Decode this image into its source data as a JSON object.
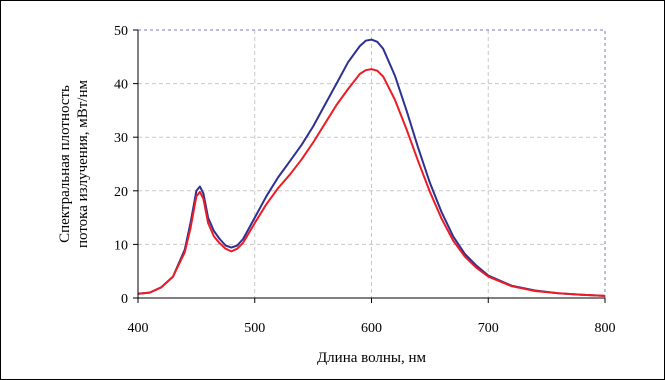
{
  "chart_data": {
    "type": "line",
    "title": "",
    "xlabel": "Длина волны, нм",
    "ylabel_lines": [
      "Спектральная плотность",
      "потока излучения, мВт/нм"
    ],
    "xlim": [
      400,
      800
    ],
    "ylim": [
      0,
      50
    ],
    "xticks": [
      "400",
      "500",
      "600",
      "700",
      "800"
    ],
    "yticks": [
      "0",
      "10",
      "20",
      "30",
      "40",
      "50"
    ],
    "grid": true,
    "colors": {
      "frame": "#7b7bc8",
      "grid": "#c8c8c8"
    },
    "series": [
      {
        "color": "#2e3192",
        "x": [
          400,
          410,
          420,
          430,
          440,
          445,
          450,
          453,
          456,
          460,
          465,
          470,
          475,
          480,
          485,
          490,
          500,
          510,
          520,
          530,
          540,
          550,
          560,
          570,
          580,
          590,
          595,
          600,
          605,
          610,
          620,
          630,
          640,
          650,
          660,
          670,
          680,
          690,
          700,
          720,
          740,
          760,
          780,
          800
        ],
        "y": [
          0.8,
          1.0,
          2.0,
          4.0,
          9.0,
          14.0,
          20.0,
          20.8,
          19.5,
          15.0,
          12.5,
          11.0,
          9.8,
          9.4,
          9.8,
          11.0,
          15.0,
          19.0,
          22.5,
          25.5,
          28.5,
          32.0,
          36.0,
          40.0,
          44.0,
          47.0,
          48.0,
          48.2,
          47.8,
          46.5,
          41.5,
          35.0,
          28.0,
          21.5,
          16.0,
          11.5,
          8.2,
          6.0,
          4.2,
          2.3,
          1.4,
          0.9,
          0.6,
          0.4
        ]
      },
      {
        "color": "#ed1c24",
        "x": [
          400,
          410,
          420,
          430,
          440,
          445,
          450,
          453,
          456,
          460,
          465,
          470,
          475,
          480,
          485,
          490,
          500,
          510,
          520,
          530,
          540,
          550,
          560,
          570,
          580,
          590,
          595,
          600,
          605,
          610,
          620,
          630,
          640,
          650,
          660,
          670,
          680,
          690,
          700,
          720,
          740,
          760,
          780,
          800
        ],
        "y": [
          0.8,
          1.0,
          2.0,
          4.0,
          8.5,
          13.0,
          19.0,
          19.8,
          18.5,
          14.0,
          11.5,
          10.2,
          9.2,
          8.7,
          9.2,
          10.3,
          14.0,
          17.5,
          20.5,
          23.0,
          25.8,
          29.0,
          32.5,
          36.0,
          39.0,
          41.8,
          42.5,
          42.7,
          42.4,
          41.3,
          37.0,
          31.5,
          25.5,
          19.8,
          14.8,
          10.7,
          7.7,
          5.6,
          4.0,
          2.2,
          1.3,
          0.9,
          0.6,
          0.4
        ]
      }
    ]
  }
}
